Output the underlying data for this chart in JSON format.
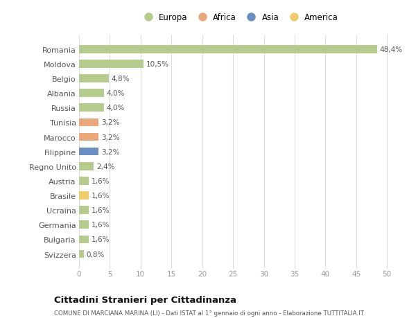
{
  "countries": [
    "Romania",
    "Moldova",
    "Belgio",
    "Albania",
    "Russia",
    "Tunisia",
    "Marocco",
    "Filippine",
    "Regno Unito",
    "Austria",
    "Brasile",
    "Ucraina",
    "Germania",
    "Bulgaria",
    "Svizzera"
  ],
  "values": [
    48.4,
    10.5,
    4.8,
    4.0,
    4.0,
    3.2,
    3.2,
    3.2,
    2.4,
    1.6,
    1.6,
    1.6,
    1.6,
    1.6,
    0.8
  ],
  "labels": [
    "48,4%",
    "10,5%",
    "4,8%",
    "4,0%",
    "4,0%",
    "3,2%",
    "3,2%",
    "3,2%",
    "2,4%",
    "1,6%",
    "1,6%",
    "1,6%",
    "1,6%",
    "1,6%",
    "0,8%"
  ],
  "continents": [
    "Europa",
    "Europa",
    "Europa",
    "Europa",
    "Europa",
    "Africa",
    "Africa",
    "Asia",
    "Europa",
    "Europa",
    "America",
    "Europa",
    "Europa",
    "Europa",
    "Europa"
  ],
  "colors": {
    "Europa": "#b5cc8e",
    "Africa": "#e8a87c",
    "Asia": "#6a8fbe",
    "America": "#f0cc6e"
  },
  "legend_order": [
    "Europa",
    "Africa",
    "Asia",
    "America"
  ],
  "xlim": [
    0,
    52
  ],
  "xticks": [
    0,
    5,
    10,
    15,
    20,
    25,
    30,
    35,
    40,
    45,
    50
  ],
  "title": "Cittadini Stranieri per Cittadinanza",
  "subtitle": "COMUNE DI MARCIANA MARINA (LI) - Dati ISTAT al 1° gennaio di ogni anno - Elaborazione TUTTITALIA.IT",
  "bg_color": "#ffffff",
  "grid_color": "#dddddd"
}
